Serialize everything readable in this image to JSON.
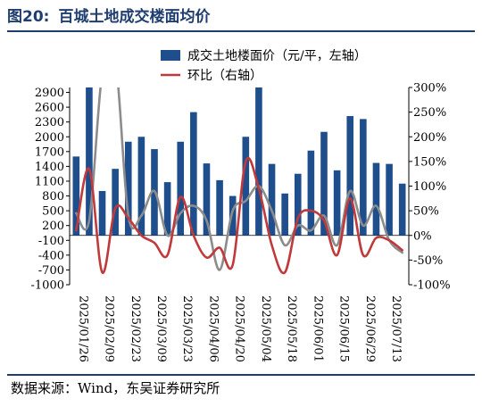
{
  "figure": {
    "number": "图20:",
    "title": "百城土地成交楼面均价"
  },
  "source": "数据来源：Wind，东吴证券研究所",
  "chart_data": {
    "type": "bar+line",
    "legend": {
      "placement": "top-right",
      "entries": [
        "成交土地楼面价（元/平，左轴）",
        "环比（右轴）"
      ]
    },
    "colors": {
      "bars": "#1f4e8c",
      "mom_line": "#c0393b",
      "gray_line": "#8c8c8c"
    },
    "left_axis": {
      "ticks": [
        2900,
        2600,
        2300,
        2000,
        1700,
        1400,
        1100,
        800,
        500,
        200,
        -100,
        -400,
        -700,
        -1000
      ],
      "tick_labels": [
        "2900",
        "2600",
        "2300",
        "2000",
        "1700",
        "1400",
        "1100",
        "800",
        "500",
        "200",
        "-100",
        "-400",
        "-700",
        "-1000"
      ],
      "ylim": [
        -1000,
        3000
      ]
    },
    "right_axis": {
      "ticks": [
        300,
        250,
        200,
        150,
        100,
        50,
        0,
        -50,
        -100
      ],
      "tick_labels": [
        "300%",
        "250%",
        "200%",
        "150%",
        "100%",
        "50%",
        "0%",
        "-50%",
        "-100%"
      ],
      "ylim": [
        -100,
        300
      ]
    },
    "x_tick_labels": [
      "2025/01/26",
      "2025/02/09",
      "2025/02/23",
      "2025/03/09",
      "2025/03/23",
      "2025/04/06",
      "2025/04/20",
      "2025/05/04",
      "2025/05/18",
      "2025/06/01",
      "2025/06/15",
      "2025/06/29",
      "2025/07/13"
    ],
    "bars": {
      "name": "成交土地楼面价（元/平，左轴）",
      "values": [
        1600,
        3000,
        900,
        1350,
        1900,
        2000,
        1750,
        1080,
        1900,
        2500,
        1460,
        1120,
        800,
        2000,
        3000,
        1450,
        850,
        1250,
        1720,
        2100,
        1320,
        2420,
        2360,
        1470,
        1450,
        1050
      ]
    },
    "series": [
      {
        "name": "环比（右轴）",
        "values": [
          10,
          135,
          -75,
          55,
          35,
          0,
          -15,
          -40,
          78,
          0,
          -45,
          -25,
          -60,
          150,
          95,
          -20,
          -75,
          35,
          50,
          30,
          -40,
          75,
          -40,
          -5,
          -10,
          -30
        ]
      },
      {
        "name": "",
        "values": [
          45,
          30,
          330,
          360,
          40,
          40,
          90,
          0,
          45,
          60,
          30,
          -70,
          50,
          70,
          100,
          50,
          -20,
          20,
          10,
          40,
          -20,
          90,
          20,
          60,
          -10,
          -35
        ]
      }
    ]
  }
}
